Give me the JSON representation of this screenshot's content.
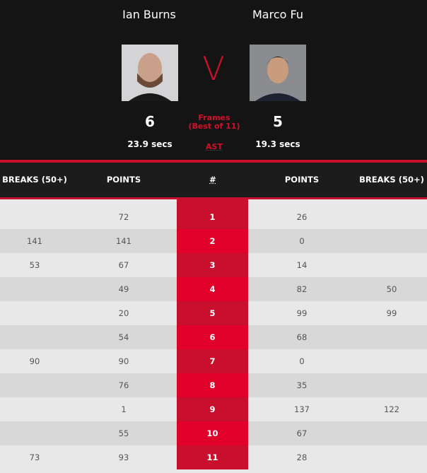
{
  "players": [
    {
      "name": "Ian Burns",
      "frames": "6",
      "avg_shot_time": "23.9 secs"
    },
    {
      "name": "Marco Fu",
      "frames": "5",
      "avg_shot_time": "19.3 secs"
    }
  ],
  "versus": "V",
  "frames_label": "Frames",
  "best_of": "(Best of 11)",
  "ast_label": "AST",
  "colors": {
    "accent": "#c8102e",
    "header_bg": "#141414"
  },
  "table": {
    "headers": [
      "BREAKS (50+)",
      "POINTS",
      "#",
      "POINTS",
      "BREAKS (50+)"
    ],
    "rows": [
      {
        "p1_breaks": "",
        "p1_points": "72",
        "frame": "1",
        "p2_points": "26",
        "p2_breaks": ""
      },
      {
        "p1_breaks": "141",
        "p1_points": "141",
        "frame": "2",
        "p2_points": "0",
        "p2_breaks": ""
      },
      {
        "p1_breaks": "53",
        "p1_points": "67",
        "frame": "3",
        "p2_points": "14",
        "p2_breaks": ""
      },
      {
        "p1_breaks": "",
        "p1_points": "49",
        "frame": "4",
        "p2_points": "82",
        "p2_breaks": "50"
      },
      {
        "p1_breaks": "",
        "p1_points": "20",
        "frame": "5",
        "p2_points": "99",
        "p2_breaks": "99"
      },
      {
        "p1_breaks": "",
        "p1_points": "54",
        "frame": "6",
        "p2_points": "68",
        "p2_breaks": ""
      },
      {
        "p1_breaks": "90",
        "p1_points": "90",
        "frame": "7",
        "p2_points": "0",
        "p2_breaks": ""
      },
      {
        "p1_breaks": "",
        "p1_points": "76",
        "frame": "8",
        "p2_points": "35",
        "p2_breaks": ""
      },
      {
        "p1_breaks": "",
        "p1_points": "1",
        "frame": "9",
        "p2_points": "137",
        "p2_breaks": "122"
      },
      {
        "p1_breaks": "",
        "p1_points": "55",
        "frame": "10",
        "p2_points": "67",
        "p2_breaks": ""
      },
      {
        "p1_breaks": "73",
        "p1_points": "93",
        "frame": "11",
        "p2_points": "28",
        "p2_breaks": ""
      }
    ]
  }
}
